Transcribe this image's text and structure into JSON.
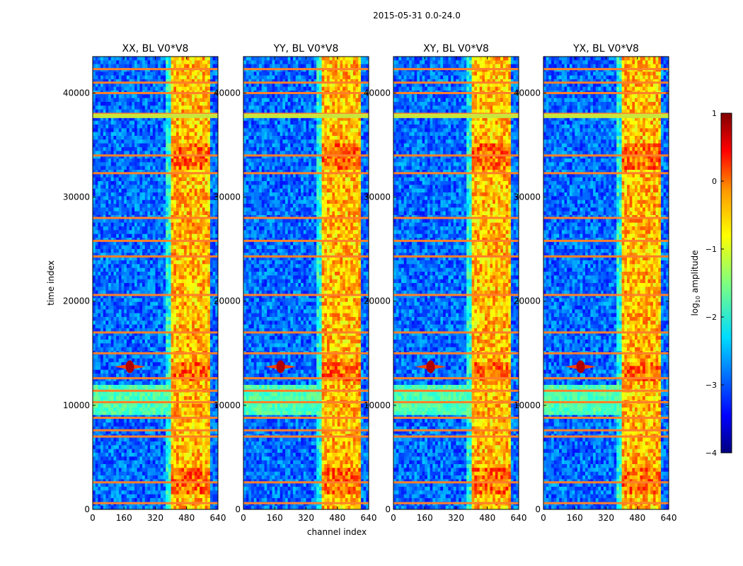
{
  "figure": {
    "suptitle": "2015-05-31 0.0-24.0"
  },
  "axes": {
    "xlabel": "channel index",
    "ylabel": "time index",
    "x_ticks": [
      "0",
      "160",
      "320",
      "480",
      "640"
    ],
    "y_ticks": [
      "0",
      "10000",
      "20000",
      "30000",
      "40000"
    ]
  },
  "colorbar": {
    "label": "log$_{10}$ amplitude",
    "label_text": "log",
    "label_sub": "10",
    "label_rest": " amplitude",
    "ticks": [
      "1",
      "0",
      "−1",
      "−2",
      "−3",
      "−4"
    ],
    "colormap": "jet"
  },
  "chart_data": [
    {
      "type": "heatmap",
      "title": "XX, BL V0*V8",
      "x_range": [
        0,
        640
      ],
      "y_range": [
        0,
        43500
      ],
      "value_range_log10": [
        -4,
        1
      ],
      "features": {
        "bright_channel_band": [
          405,
          600
        ],
        "compact_source": {
          "channel": 190,
          "time": 13700
        },
        "hot_rows": [
          600,
          2600,
          7000,
          7600,
          8800,
          10300,
          11400,
          12600,
          15000,
          17000,
          20600,
          24300,
          25800,
          28000,
          32300,
          34000,
          38000,
          40000,
          41000,
          42300
        ]
      }
    },
    {
      "type": "heatmap",
      "title": "YY, BL V0*V8",
      "x_range": [
        0,
        640
      ],
      "y_range": [
        0,
        43500
      ],
      "value_range_log10": [
        -4,
        1
      ],
      "features": {
        "bright_channel_band": [
          400,
          600
        ],
        "compact_source": {
          "channel": 190,
          "time": 13700
        },
        "hot_rows": [
          600,
          2600,
          7000,
          7600,
          8800,
          10300,
          11400,
          12600,
          15000,
          17000,
          20600,
          24300,
          25800,
          28000,
          32300,
          34000,
          38000,
          40000,
          41000,
          42300
        ]
      }
    },
    {
      "type": "heatmap",
      "title": "XY, BL V0*V8",
      "x_range": [
        0,
        640
      ],
      "y_range": [
        0,
        43500
      ],
      "value_range_log10": [
        -4,
        1
      ],
      "features": {
        "bright_channel_band": [
          405,
          600
        ],
        "compact_source": {
          "channel": 190,
          "time": 13700
        },
        "hot_rows": [
          600,
          2600,
          7000,
          7600,
          8800,
          10300,
          11400,
          12600,
          15000,
          17000,
          20600,
          24300,
          25800,
          28000,
          32300,
          34000,
          38000,
          40000,
          41000,
          42300
        ]
      }
    },
    {
      "type": "heatmap",
      "title": "YX, BL V0*V8",
      "x_range": [
        0,
        640
      ],
      "y_range": [
        0,
        43500
      ],
      "value_range_log10": [
        -4,
        1
      ],
      "features": {
        "bright_channel_band": [
          405,
          600
        ],
        "compact_source": {
          "channel": 190,
          "time": 13700
        },
        "hot_rows": [
          600,
          2600,
          7000,
          7600,
          8800,
          10300,
          11400,
          12600,
          15000,
          17000,
          20600,
          24300,
          25800,
          28000,
          32300,
          34000,
          38000,
          40000,
          41000,
          42300
        ]
      }
    }
  ]
}
